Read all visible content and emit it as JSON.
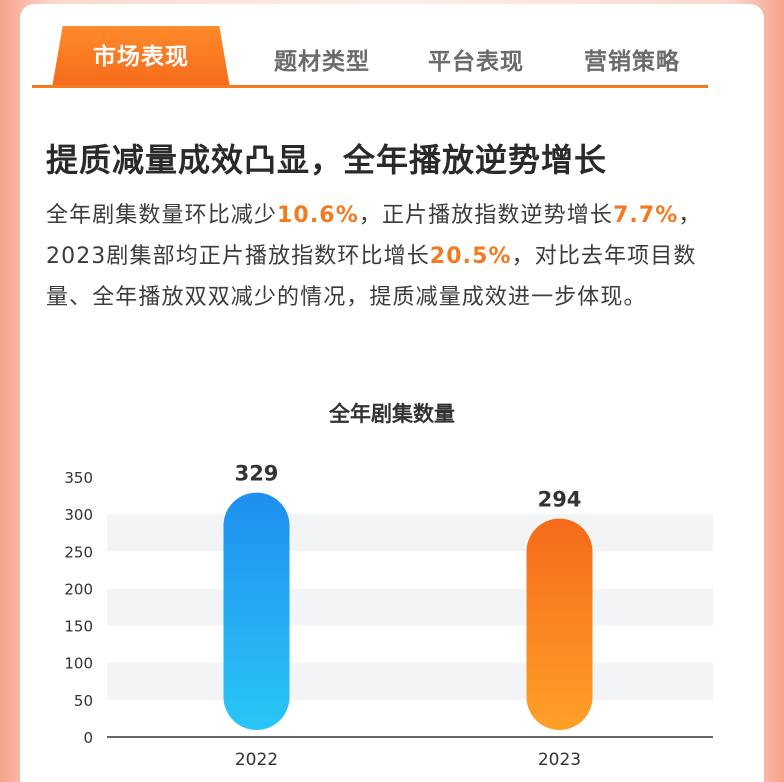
{
  "tabs": [
    {
      "label": "市场表现",
      "active": true
    },
    {
      "label": "题材类型",
      "active": false
    },
    {
      "label": "平台表现",
      "active": false
    },
    {
      "label": "营销策略",
      "active": false
    }
  ],
  "headline": "提质减量成效凸显，全年播放逆势增长",
  "paragraph": {
    "p1": "全年剧集数量环比减少",
    "h1": "10.6%",
    "p2": "，正片播放指数逆势增长",
    "h2": "7.7%",
    "p3": "，2023剧集部均正片播放指数环比增长",
    "h3": "20.5%",
    "p4": "，对比去年项目数量、全年播放双双减少的情况，提质减量成效进一步体现。"
  },
  "colors": {
    "accent": "#f57a1f",
    "bar_2022_top": "#1e8ff0",
    "bar_2022_bottom": "#2ac6f6",
    "bar_2023_top": "#f56a1a",
    "bar_2023_bottom": "#ffa028"
  },
  "chart_data": {
    "type": "bar",
    "title": "全年剧集数量",
    "categories": [
      "2022",
      "2023"
    ],
    "values": [
      329,
      294
    ],
    "data_labels": [
      "329",
      "294"
    ],
    "ylim": [
      0,
      350
    ],
    "yticks": [
      "0",
      "50",
      "100",
      "150",
      "200",
      "250",
      "300",
      "350"
    ],
    "grid": "alternating bands",
    "legend": "none"
  }
}
